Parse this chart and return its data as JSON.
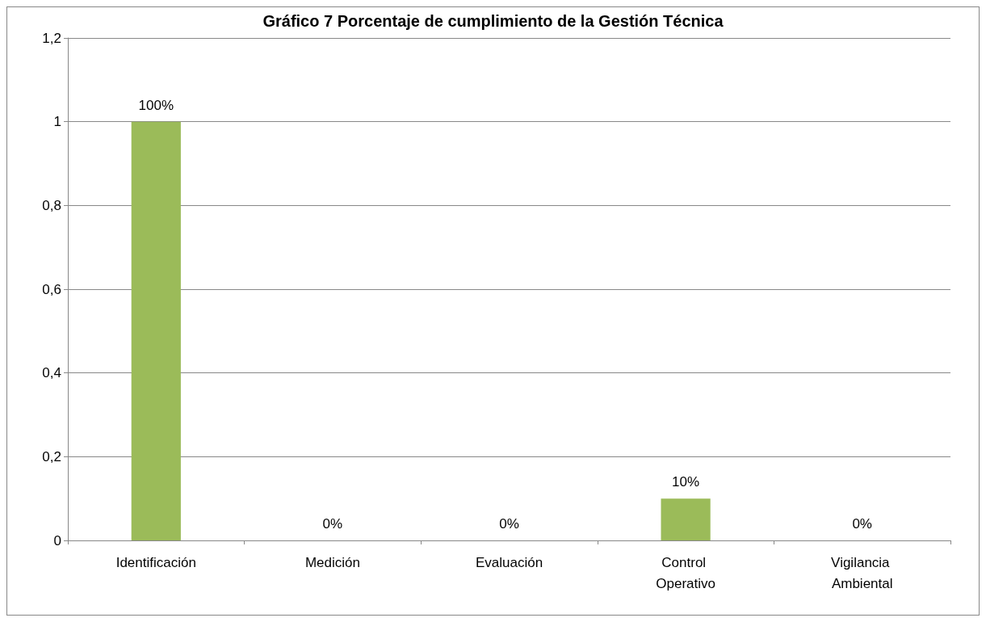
{
  "chart_data": {
    "type": "bar",
    "title": "Gráfico 7 Porcentaje de cumplimiento de la Gestión Técnica",
    "categories": [
      "Identificación",
      "Medición",
      "Evaluación",
      "Control Operativo",
      "Vigilancia Ambiental"
    ],
    "values": [
      1,
      0,
      0,
      0.1,
      0
    ],
    "color": "#9bbb59",
    "value_labels": [
      "100%",
      "0%",
      "0%",
      "10%",
      "0%"
    ],
    "ylim": [
      0,
      1.2
    ],
    "yticks": [
      0,
      {
        "value": 0.2,
        "label": "0,2"
      },
      {
        "value": 0.4,
        "label": "0,4"
      },
      {
        "value": 0.6,
        "label": "0,6"
      },
      {
        "value": 0.8,
        "label": "0,8"
      },
      1,
      {
        "value": 1.2,
        "label": "1,2"
      }
    ],
    "grid": "y"
  }
}
